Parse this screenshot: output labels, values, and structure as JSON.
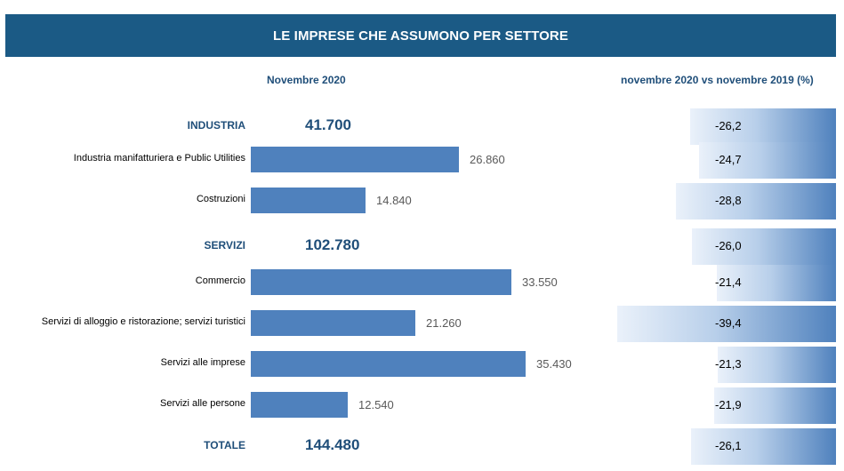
{
  "header": {
    "title": "LE IMPRESE CHE ASSUMONO PER SETTORE",
    "left_subtitle": "Novembre 2020",
    "right_subtitle": "novembre 2020 vs novembre 2019 (%)"
  },
  "chart_data": {
    "type": "bar",
    "orientation": "horizontal",
    "title": "LE IMPRESE CHE ASSUMONO PER SETTORE",
    "rows": [
      {
        "label": "INDUSTRIA",
        "group": true,
        "value": 41700,
        "value_label": "41.700",
        "change": -26.2,
        "change_label": "-26,2"
      },
      {
        "label": "Industria manifatturiera e Public Utilities",
        "group": false,
        "value": 26860,
        "value_label": "26.860",
        "change": -24.7,
        "change_label": "-24,7"
      },
      {
        "label": "Costruzioni",
        "group": false,
        "value": 14840,
        "value_label": "14.840",
        "change": -28.8,
        "change_label": "-28,8"
      },
      {
        "label": "SERVIZI",
        "group": true,
        "value": 102780,
        "value_label": "102.780",
        "change": -26.0,
        "change_label": "-26,0"
      },
      {
        "label": "Commercio",
        "group": false,
        "value": 33550,
        "value_label": "33.550",
        "change": -21.4,
        "change_label": "-21,4"
      },
      {
        "label": "Servizi di alloggio e ristorazione; servizi turistici",
        "group": false,
        "value": 21260,
        "value_label": "21.260",
        "change": -39.4,
        "change_label": "-39,4"
      },
      {
        "label": "Servizi alle imprese",
        "group": false,
        "value": 35430,
        "value_label": "35.430",
        "change": -21.3,
        "change_label": "-21,3"
      },
      {
        "label": "Servizi alle persone",
        "group": false,
        "value": 12540,
        "value_label": "12.540",
        "change": -21.9,
        "change_label": "-21,9"
      },
      {
        "label": "TOTALE",
        "group": true,
        "value": 144480,
        "value_label": "144.480",
        "change": -26.1,
        "change_label": "-26,1"
      }
    ],
    "bar_color": "#4f81bd",
    "title_color": "#1b5a85",
    "accent_text_color": "#1f4e79",
    "grid": false,
    "legend": "none"
  }
}
